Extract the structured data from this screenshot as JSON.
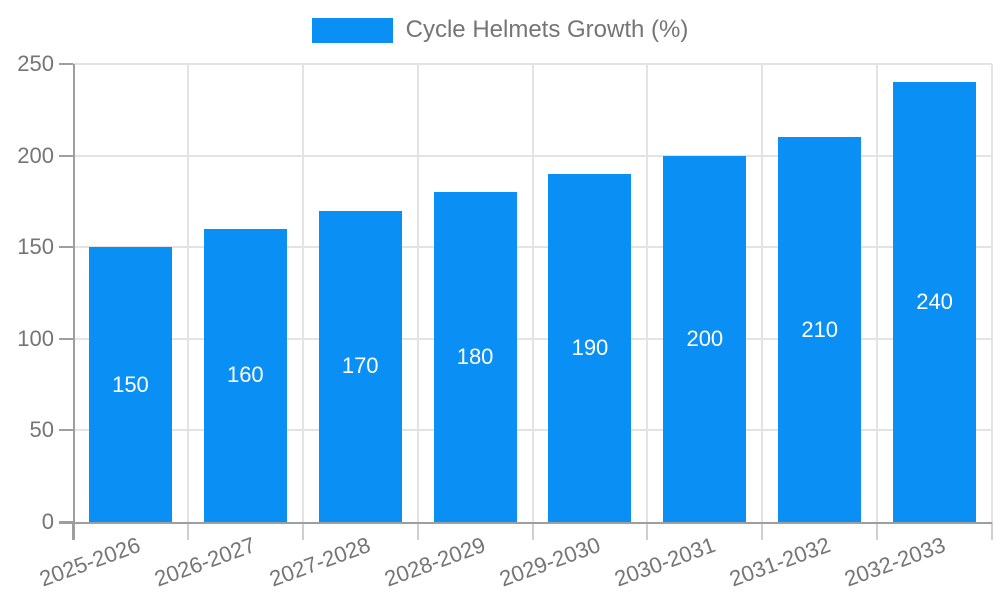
{
  "chart_data": {
    "type": "bar",
    "title": "Cycle Helmets Growth (%)",
    "categories": [
      "2025-2026",
      "2026-2027",
      "2027-2028",
      "2028-2029",
      "2029-2030",
      "2030-2031",
      "2031-2032",
      "2032-2033"
    ],
    "values": [
      150,
      160,
      170,
      180,
      190,
      200,
      210,
      240
    ],
    "xlabel": "",
    "ylabel": "",
    "ylim": [
      0,
      250
    ],
    "yticks": [
      0,
      50,
      100,
      150,
      200,
      250
    ],
    "grid": true,
    "legend_position": "top",
    "value_label_position": "inside-center",
    "x_tick_rotation_deg": -20,
    "colors": {
      "bar": "#0a8ff4",
      "grid": "#e3e3e3",
      "axis": "#9e9e9e",
      "minor_tick": "#cfcfcf",
      "tick_text": "#757575",
      "value_label": "#ffffff",
      "background": "#ffffff"
    }
  },
  "legend": {
    "label": "Cycle Helmets Growth (%)"
  }
}
